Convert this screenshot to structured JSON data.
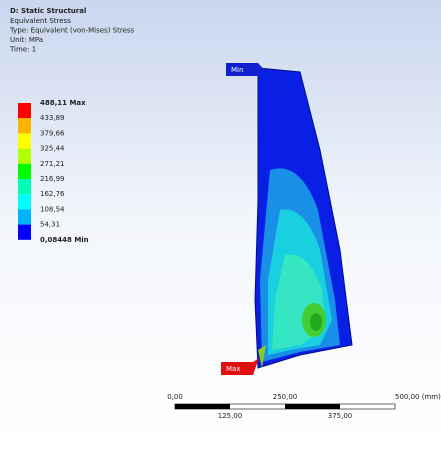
{
  "header": {
    "title": "D: Static Structural",
    "lines": [
      "Equivalent Stress",
      "Type: Equivalent (von-Mises) Stress",
      "Unit: MPa",
      "Time: 1"
    ]
  },
  "legend": {
    "labels": [
      "488,11 Max",
      "433,89",
      "379,66",
      "325,44",
      "271,21",
      "216,99",
      "162,76",
      "108,54",
      "54,31",
      "0,08448 Min"
    ],
    "colors": [
      "#ff0000",
      "#ffb400",
      "#ffff00",
      "#b4ff00",
      "#00ff00",
      "#00ffb4",
      "#00ffff",
      "#00b4ff",
      "#0000ff"
    ]
  },
  "tags": {
    "min": "Min",
    "max": "Max"
  },
  "scale": {
    "top": [
      "0,00",
      "250,00",
      "500,00 (mm)"
    ],
    "bottom": [
      "125,00",
      "375,00"
    ]
  }
}
